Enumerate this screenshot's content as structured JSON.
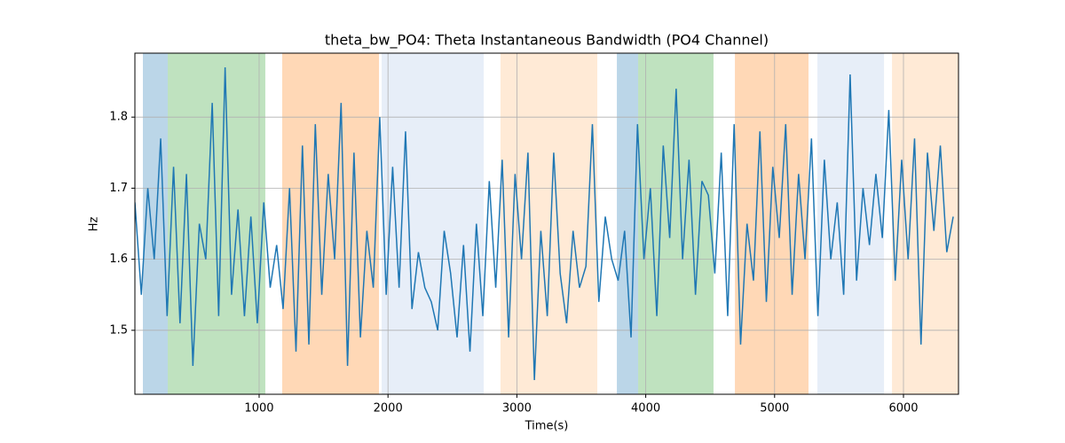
{
  "chart_data": {
    "type": "line",
    "title": "theta_bw_PO4: Theta Instantaneous Bandwidth (PO4 Channel)",
    "x_label": "Time(s)",
    "y_label": "Hz",
    "xlim": [
      36,
      6427
    ],
    "ylim": [
      1.41,
      1.89
    ],
    "xticks": [
      1000,
      2000,
      3000,
      4000,
      5000,
      6000
    ],
    "yticks": [
      1.5,
      1.6,
      1.7,
      1.8
    ],
    "grid": true,
    "spans": [
      {
        "start": 98,
        "end": 291,
        "color": "#1f77b4",
        "opacity": 0.3
      },
      {
        "start": 291,
        "end": 1048,
        "color": "#2ca02c",
        "opacity": 0.3
      },
      {
        "start": 1179,
        "end": 1930,
        "color": "#ff7f0e",
        "opacity": 0.3
      },
      {
        "start": 1951,
        "end": 2743,
        "color": "#aec7e8",
        "opacity": 0.3
      },
      {
        "start": 2873,
        "end": 3624,
        "color": "#ffbb78",
        "opacity": 0.3
      },
      {
        "start": 3776,
        "end": 3941,
        "color": "#1f77b4",
        "opacity": 0.3
      },
      {
        "start": 3941,
        "end": 4526,
        "color": "#2ca02c",
        "opacity": 0.3
      },
      {
        "start": 4692,
        "end": 5263,
        "color": "#ff7f0e",
        "opacity": 0.3
      },
      {
        "start": 5332,
        "end": 5849,
        "color": "#aec7e8",
        "opacity": 0.3
      },
      {
        "start": 5911,
        "end": 6427,
        "color": "#ffbb78",
        "opacity": 0.3
      }
    ],
    "series": [
      {
        "color": "#1f77b4",
        "x": [
          36,
          86,
          136,
          186,
          236,
          286,
          336,
          386,
          436,
          486,
          536,
          586,
          636,
          686,
          736,
          786,
          836,
          886,
          936,
          986,
          1036,
          1086,
          1136,
          1186,
          1236,
          1286,
          1336,
          1386,
          1436,
          1486,
          1536,
          1586,
          1636,
          1686,
          1736,
          1786,
          1836,
          1886,
          1936,
          1986,
          2036,
          2086,
          2136,
          2186,
          2236,
          2286,
          2336,
          2386,
          2436,
          2486,
          2536,
          2586,
          2636,
          2686,
          2736,
          2786,
          2836,
          2886,
          2936,
          2986,
          3036,
          3086,
          3136,
          3186,
          3236,
          3286,
          3336,
          3386,
          3436,
          3486,
          3536,
          3586,
          3636,
          3686,
          3736,
          3786,
          3836,
          3886,
          3936,
          3986,
          4036,
          4086,
          4136,
          4186,
          4236,
          4286,
          4336,
          4386,
          4436,
          4486,
          4536,
          4586,
          4636,
          4686,
          4736,
          4786,
          4836,
          4886,
          4936,
          4986,
          5036,
          5086,
          5136,
          5186,
          5236,
          5286,
          5336,
          5386,
          5436,
          5486,
          5536,
          5586,
          5636,
          5686,
          5736,
          5786,
          5836,
          5886,
          5936,
          5986,
          6036,
          6086,
          6136,
          6186,
          6236,
          6286,
          6336,
          6386
        ],
        "values": [
          1.68,
          1.55,
          1.7,
          1.6,
          1.77,
          1.52,
          1.73,
          1.51,
          1.72,
          1.45,
          1.65,
          1.6,
          1.82,
          1.52,
          1.87,
          1.55,
          1.67,
          1.52,
          1.66,
          1.51,
          1.68,
          1.56,
          1.62,
          1.53,
          1.7,
          1.47,
          1.76,
          1.48,
          1.79,
          1.55,
          1.72,
          1.6,
          1.82,
          1.45,
          1.75,
          1.49,
          1.64,
          1.56,
          1.8,
          1.55,
          1.73,
          1.56,
          1.78,
          1.53,
          1.61,
          1.56,
          1.54,
          1.5,
          1.64,
          1.58,
          1.49,
          1.62,
          1.47,
          1.65,
          1.52,
          1.71,
          1.56,
          1.74,
          1.49,
          1.72,
          1.6,
          1.75,
          1.43,
          1.64,
          1.52,
          1.75,
          1.58,
          1.51,
          1.64,
          1.56,
          1.59,
          1.79,
          1.54,
          1.66,
          1.6,
          1.57,
          1.64,
          1.49,
          1.79,
          1.6,
          1.7,
          1.52,
          1.76,
          1.63,
          1.84,
          1.6,
          1.74,
          1.55,
          1.71,
          1.69,
          1.58,
          1.75,
          1.52,
          1.79,
          1.48,
          1.65,
          1.57,
          1.78,
          1.54,
          1.73,
          1.63,
          1.79,
          1.55,
          1.72,
          1.6,
          1.77,
          1.52,
          1.74,
          1.6,
          1.68,
          1.55,
          1.86,
          1.57,
          1.7,
          1.62,
          1.72,
          1.63,
          1.81,
          1.57,
          1.74,
          1.6,
          1.77,
          1.48,
          1.75,
          1.64,
          1.76,
          1.61,
          1.66
        ]
      }
    ]
  }
}
